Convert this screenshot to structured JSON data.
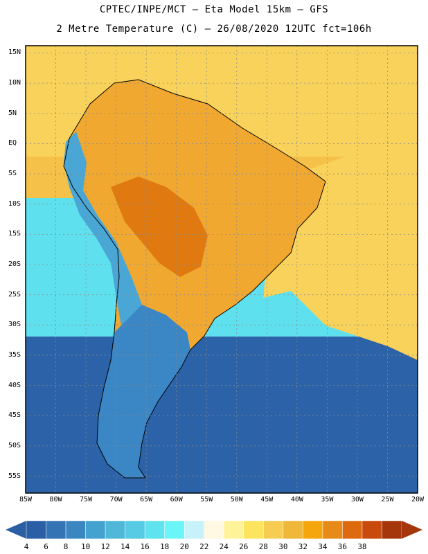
{
  "title_line1": "CPTEC/INPE/MCT –  Eta Model 15km – GFS",
  "title_line2": "2 Metre Temperature (C) – 26/08/2020 12UTC fct=106h",
  "lat_labels": [
    "15N",
    "10N",
    "5N",
    "EQ",
    "5S",
    "10S",
    "15S",
    "20S",
    "25S",
    "30S",
    "35S",
    "40S",
    "45S",
    "50S",
    "55S"
  ],
  "lon_labels": [
    "85W",
    "80W",
    "75W",
    "70W",
    "65W",
    "60W",
    "55W",
    "50W",
    "45W",
    "40W",
    "35W",
    "30W",
    "25W",
    "20W"
  ],
  "colorbar": {
    "ticks": [
      "4",
      "6",
      "8",
      "10",
      "12",
      "14",
      "16",
      "18",
      "20",
      "22",
      "24",
      "26",
      "28",
      "30",
      "32",
      "34",
      "36",
      "38"
    ],
    "colors": [
      "#2a5fa5",
      "#3474b5",
      "#3a86c0",
      "#43a2cf",
      "#4fb8d9",
      "#57cbe3",
      "#5fe3ee",
      "#6af6f8",
      "#c8f2fa",
      "#fff8e2",
      "#fff39a",
      "#fde45e",
      "#f6cd50",
      "#f0b83a",
      "#f5a60c",
      "#e88a18",
      "#de6a10",
      "#c84a0c",
      "#a5360c"
    ],
    "left_arrow_color": "#2b5fa3",
    "right_arrow_color": "#a5360c"
  },
  "map_data": {
    "extent": {
      "lon": [
        -85,
        -20
      ],
      "lat": [
        -57,
        16
      ]
    },
    "colors": {
      "land_hot": "#e07a10",
      "land_warm": "#f0a830",
      "land_mild": "#f6c148",
      "ocean_tropic": "#f8d25a",
      "ocean_cool": "#5fe0ee",
      "ocean_cold": "#2c63a8",
      "andes": "#4aa6d4",
      "coast": "#000000",
      "grid": "#8a8a8a"
    }
  }
}
